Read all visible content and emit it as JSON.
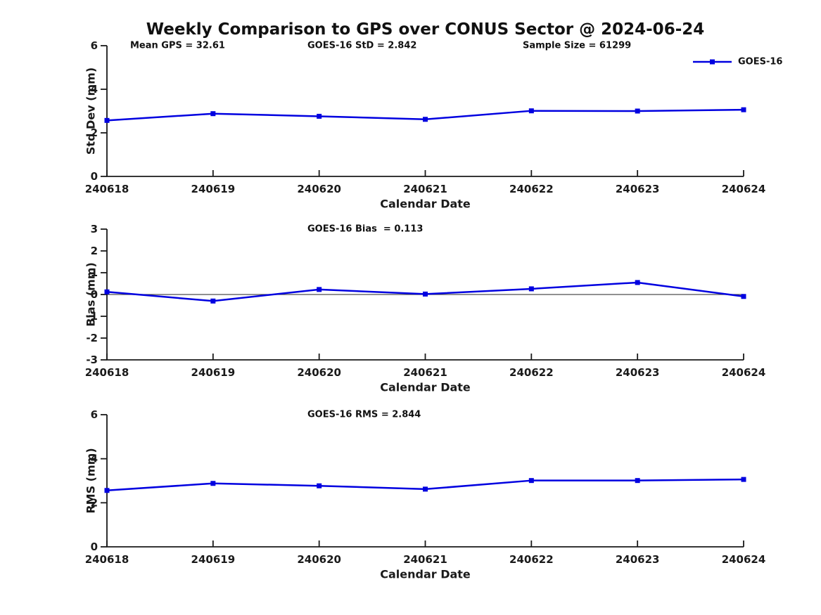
{
  "title": "Weekly Comparison to GPS over CONUS Sector @ 2024-06-24",
  "colors": {
    "series": "#0000e0",
    "axis": "#1a1a1a",
    "zero_line": "#4d4d4d",
    "background": "#ffffff"
  },
  "legend": {
    "label": "GOES-16",
    "position": "top-right"
  },
  "chart_data": [
    {
      "type": "line",
      "name": "std-dev",
      "ylabel": "Std Dev (mm)",
      "xlabel": "Calendar Date",
      "categories": [
        "240618",
        "240619",
        "240620",
        "240621",
        "240622",
        "240623",
        "240624"
      ],
      "series": [
        {
          "name": "GOES-16",
          "values": [
            2.57,
            2.88,
            2.76,
            2.62,
            3.01,
            3.0,
            3.06
          ]
        }
      ],
      "ylim": [
        0,
        6
      ],
      "yticks": [
        0,
        2,
        4,
        6
      ],
      "zero_line": false,
      "grid": false,
      "annotations": [
        {
          "text": "Mean GPS = 32.61"
        },
        {
          "text": "GOES-16 StD = 2.842"
        },
        {
          "text": "Sample Size = 61299"
        }
      ]
    },
    {
      "type": "line",
      "name": "bias",
      "ylabel": "Bias (mm)",
      "xlabel": "Calendar Date",
      "categories": [
        "240618",
        "240619",
        "240620",
        "240621",
        "240622",
        "240623",
        "240624"
      ],
      "series": [
        {
          "name": "GOES-16",
          "values": [
            0.12,
            -0.3,
            0.23,
            0.02,
            0.26,
            0.55,
            -0.09
          ]
        }
      ],
      "ylim": [
        -3,
        3
      ],
      "yticks": [
        -3,
        -2,
        -1,
        0,
        1,
        2,
        3
      ],
      "zero_line": true,
      "grid": false,
      "annotations": [
        {
          "text": "GOES-16 Bias  = 0.113"
        }
      ]
    },
    {
      "type": "line",
      "name": "rms",
      "ylabel": "RMS (mm)",
      "xlabel": "Calendar Date",
      "categories": [
        "240618",
        "240619",
        "240620",
        "240621",
        "240622",
        "240623",
        "240624"
      ],
      "series": [
        {
          "name": "GOES-16",
          "values": [
            2.56,
            2.88,
            2.77,
            2.62,
            3.01,
            3.01,
            3.06
          ]
        }
      ],
      "ylim": [
        0,
        6
      ],
      "yticks": [
        0,
        2,
        4,
        6
      ],
      "zero_line": false,
      "grid": false,
      "annotations": [
        {
          "text": "GOES-16 RMS = 2.844"
        }
      ]
    }
  ]
}
